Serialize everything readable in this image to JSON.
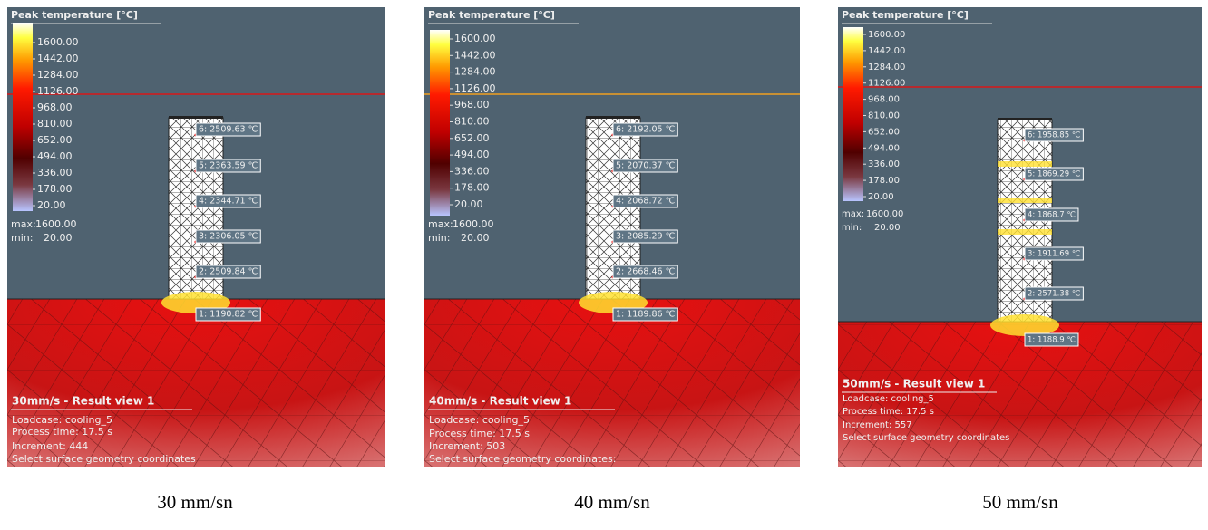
{
  "panels": [
    {
      "legend": {
        "title": "Peak temperature [°C]",
        "ticks": [
          "1600.00",
          "1442.00",
          "1284.00",
          "1126.00",
          "968.00",
          "810.00",
          "652.00",
          "494.00",
          "336.00",
          "178.00",
          "20.00"
        ],
        "max_label": "max:",
        "max": "1600.00",
        "min_label": "min:",
        "min": "20.00"
      },
      "probes": [
        "6: 2509.63 ℃",
        "5: 2363.59 ℃",
        "4: 2344.71 ℃",
        "3: 2306.05 ℃",
        "2: 2509.84 ℃",
        "1: 1190.82 ℃"
      ],
      "view_title": "30mm/s - Result view 1",
      "info": [
        "Loadcase: cooling_5",
        "Process time: 17.5 s",
        "Increment: 444",
        "Select surface geometry coordinates"
      ]
    },
    {
      "legend": {
        "title": "Peak temperature [°C]",
        "ticks": [
          "1600.00",
          "1442.00",
          "1284.00",
          "1126.00",
          "968.00",
          "810.00",
          "652.00",
          "494.00",
          "336.00",
          "178.00",
          "20.00"
        ],
        "max_label": "max:",
        "max": "1600.00",
        "min_label": "min:",
        "min": "20.00"
      },
      "probes": [
        "6: 2192.05 ℃",
        "5: 2070.37 ℃",
        "4: 2068.72 ℃",
        "3: 2085.29 ℃",
        "2: 2668.46 ℃",
        "1: 1189.86 ℃"
      ],
      "view_title": "40mm/s - Result view 1",
      "info": [
        "Loadcase: cooling_5",
        "Process time: 17.5 s",
        "Increment: 503",
        "Select surface geometry coordinates:"
      ]
    },
    {
      "legend": {
        "title": "Peak temperature [°C]",
        "ticks": [
          "1600.00",
          "1442.00",
          "1284.00",
          "1126.00",
          "968.00",
          "810.00",
          "652.00",
          "494.00",
          "336.00",
          "178.00",
          "20.00"
        ],
        "max_label": "max:",
        "max": "1600.00",
        "min_label": "min:",
        "min": "20.00"
      },
      "probes": [
        "6: 1958.85 ℃",
        "5: 1869.29 ℃",
        "4: 1868.7 ℃",
        "3: 1911.69 ℃",
        "2: 2571.38 ℃",
        "1: 1188.9 ℃"
      ],
      "view_title": "50mm/s - Result view 1",
      "info": [
        "Loadcase: cooling_5",
        "Process time: 17.5 s",
        "Increment: 557",
        "Select surface geometry coordinates"
      ]
    }
  ],
  "captions": [
    "30 mm/sn",
    "40 mm/sn",
    "50 mm/sn"
  ]
}
